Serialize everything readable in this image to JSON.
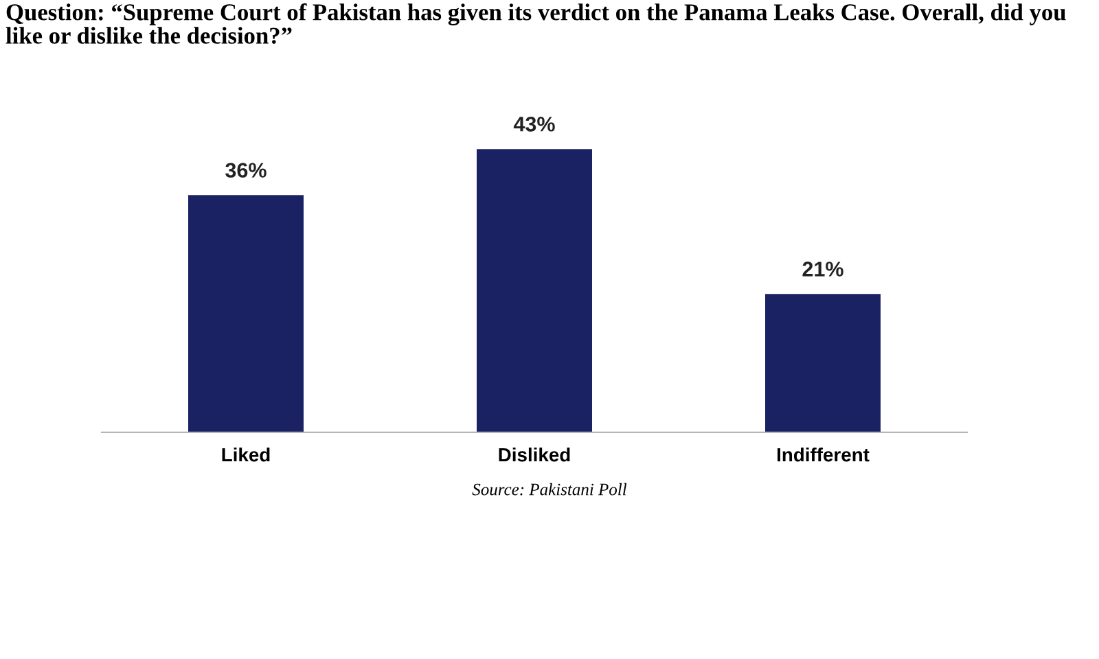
{
  "chart_data": {
    "type": "bar",
    "title": "Question: “Supreme Court of Pakistan has given its verdict on the Panama Leaks Case. Overall, did you like or dislike the decision?”",
    "categories": [
      "Liked",
      "Disliked",
      "Indifferent"
    ],
    "values": [
      36,
      43,
      21
    ],
    "value_labels": [
      "36%",
      "43%",
      "21%"
    ],
    "color": "#1b2263",
    "annotations": [
      "Source: Pakistani Poll"
    ]
  }
}
